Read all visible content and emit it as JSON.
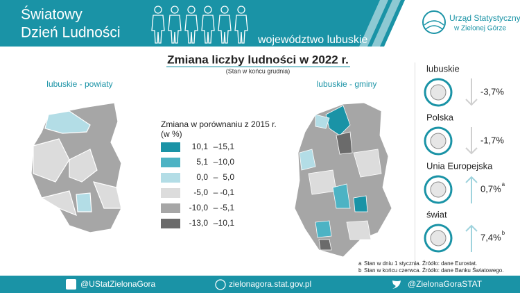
{
  "header": {
    "title_lines": [
      "Światowy",
      "Dzień Ludności"
    ],
    "region": "województwo lubuskie",
    "logo_lines": [
      "Urząd Statystyczny",
      "w Zielonej Górze"
    ]
  },
  "main": {
    "title": "Zmiana liczby ludności w 2022 r.",
    "subtitle": "(Stan w końcu grudnia)"
  },
  "maps": [
    {
      "title": "lubuskie - powiaty"
    },
    {
      "title": "lubuskie - gminy"
    }
  ],
  "legend": {
    "title_lines": [
      "Zmiana w porównaniu z 2015 r.",
      "(w %)"
    ],
    "items": [
      {
        "from": "10,1",
        "to": "15,1",
        "color": "#1a93a6"
      },
      {
        "from": "5,1",
        "to": "10,0",
        "color": "#4db3c4"
      },
      {
        "from": "0,0",
        "to": "5,0",
        "color": "#b3dde6"
      },
      {
        "from": "-5,0",
        "to": "-0,1",
        "color": "#dcdcdc"
      },
      {
        "from": "-10,0",
        "to": "-5,1",
        "color": "#a6a6a6"
      },
      {
        "from": "-13,0",
        "to": "-10,1",
        "color": "#6b6b6b"
      }
    ]
  },
  "stats": [
    {
      "label": "lubuskie",
      "value": "-3,7%",
      "direction": "down"
    },
    {
      "label": "Polska",
      "value": "-1,7%",
      "direction": "down"
    },
    {
      "label": "Unia Europejska",
      "value": "0,7%",
      "note": "a",
      "direction": "up"
    },
    {
      "label": "świat",
      "value": "7,4%",
      "note": "b",
      "direction": "up"
    }
  ],
  "notes": [
    {
      "mark": "a",
      "text": "Stan w dniu 1 stycznia. Źródło: dane Eurostat."
    },
    {
      "mark": "b",
      "text": "Stan w końcu czerwca. Źródło: dane Banku Światowego."
    }
  ],
  "footer": {
    "facebook": "@UStatZielonaGora",
    "website": "zielonagora.stat.gov.pl",
    "twitter": "@ZielonaGoraSTAT"
  }
}
